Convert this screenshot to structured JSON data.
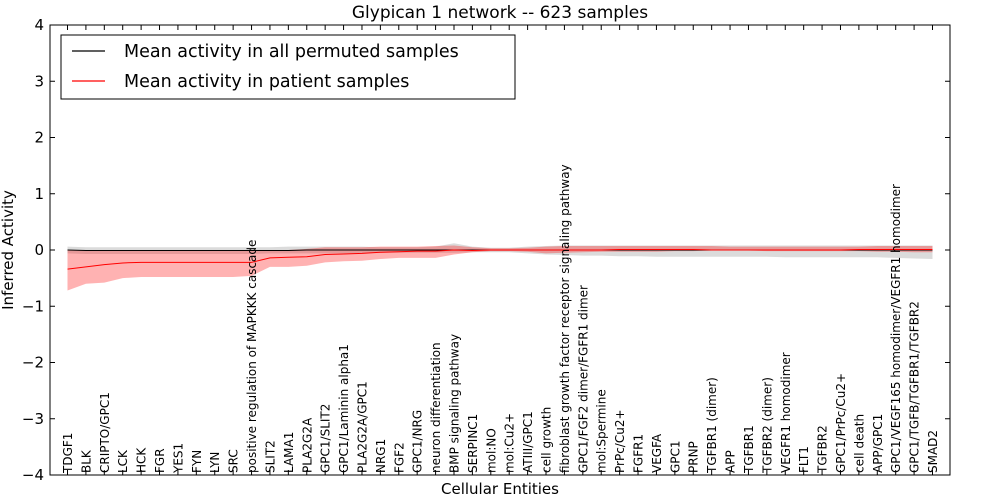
{
  "chart_data": {
    "type": "line",
    "title": "Glypican 1 network -- 623 samples",
    "xlabel": "Cellular Entities",
    "ylabel": "Inferred Activity",
    "ylim": [
      -4,
      4
    ],
    "yticks": [
      -4,
      -3,
      -2,
      -1,
      0,
      1,
      2,
      3,
      4
    ],
    "ytick_labels": [
      "−4",
      "−3",
      "−2",
      "−1",
      "0",
      "1",
      "2",
      "3",
      "4"
    ],
    "grid": false,
    "legend_position": "top-left",
    "categories": [
      "TDGF1",
      "BLK",
      "CRIPTO/GPC1",
      "LCK",
      "HCK",
      "FGR",
      "YES1",
      "FYN",
      "LYN",
      "SRC",
      "positive regulation of MAPKKK cascade",
      "SLIT2",
      "LAMA1",
      "PLA2G2A",
      "GPC1/SLIT2",
      "GPC1/Laminin alpha1",
      "PLA2G2A/GPC1",
      "NRG1",
      "FGF2",
      "GPC1/NRG",
      "neuron differentiation",
      "BMP signaling pathway",
      "SERPINC1",
      "mol:NO",
      "mol:Cu2+",
      "ATIII/GPC1",
      "cell growth",
      "fibroblast growth factor receptor signaling pathway",
      "GPC1/FGF2 dimer/FGFR1 dimer",
      "mol:Spermine",
      "PrPc/Cu2+",
      "FGFR1",
      "VEGFA",
      "GPC1",
      "PRNP",
      "TGFBR1 (dimer)",
      "APP",
      "TGFBR1",
      "TGFBR2 (dimer)",
      "VEGFR1 homodimer",
      "FLT1",
      "TGFBR2",
      "GPC1/PrPc/Cu2+",
      "cell death",
      "APP/GPC1",
      "GPC1/VEGF165 homodimer/VEGFR1 homodimer",
      "GPC1/TGFB/TGFBR1/TGFBR2",
      "SMAD2"
    ],
    "series": [
      {
        "name": "Mean activity in all permuted samples",
        "color": "#000000",
        "band_color": "#a0a0a0",
        "values": [
          0.0,
          -0.01,
          -0.01,
          -0.01,
          -0.01,
          -0.01,
          -0.01,
          -0.01,
          -0.01,
          -0.01,
          -0.01,
          -0.01,
          -0.01,
          0.0,
          0.0,
          0.0,
          0.0,
          0.0,
          0.0,
          0.0,
          0.0,
          0.0,
          0.0,
          0.0,
          0.0,
          0.0,
          0.0,
          0.0,
          0.0,
          0.0,
          0.0,
          0.0,
          0.0,
          0.0,
          0.0,
          0.0,
          0.0,
          0.0,
          0.0,
          0.0,
          0.0,
          0.0,
          0.0,
          0.0,
          0.0,
          0.0,
          0.0,
          0.0
        ],
        "lower": [
          -0.06,
          -0.07,
          -0.07,
          -0.07,
          -0.07,
          -0.07,
          -0.07,
          -0.07,
          -0.07,
          -0.07,
          -0.07,
          -0.06,
          -0.06,
          -0.06,
          -0.06,
          -0.06,
          -0.06,
          -0.05,
          -0.05,
          -0.05,
          -0.05,
          -0.05,
          -0.04,
          -0.04,
          -0.04,
          -0.06,
          -0.08,
          -0.09,
          -0.1,
          -0.1,
          -0.11,
          -0.11,
          -0.12,
          -0.12,
          -0.12,
          -0.12,
          -0.12,
          -0.12,
          -0.12,
          -0.13,
          -0.13,
          -0.13,
          -0.13,
          -0.13,
          -0.13,
          -0.14,
          -0.15,
          -0.16
        ],
        "upper": [
          0.06,
          0.05,
          0.05,
          0.05,
          0.05,
          0.05,
          0.05,
          0.05,
          0.05,
          0.05,
          0.05,
          0.05,
          0.06,
          0.06,
          0.06,
          0.06,
          0.06,
          0.05,
          0.05,
          0.05,
          0.06,
          0.12,
          0.06,
          0.04,
          0.04,
          0.06,
          0.07,
          0.08,
          0.08,
          0.08,
          0.08,
          0.08,
          0.08,
          0.08,
          0.08,
          0.08,
          0.08,
          0.08,
          0.08,
          0.08,
          0.08,
          0.08,
          0.08,
          0.08,
          0.08,
          0.08,
          0.08,
          0.08
        ]
      },
      {
        "name": "Mean activity in patient samples",
        "color": "#ff0000",
        "band_color": "#ff0000",
        "values": [
          -0.34,
          -0.3,
          -0.26,
          -0.23,
          -0.22,
          -0.22,
          -0.22,
          -0.22,
          -0.22,
          -0.22,
          -0.22,
          -0.14,
          -0.13,
          -0.12,
          -0.08,
          -0.07,
          -0.06,
          -0.04,
          -0.03,
          -0.02,
          -0.02,
          0.0,
          -0.01,
          0.0,
          0.0,
          0.0,
          0.0,
          0.0,
          0.0,
          0.0,
          0.01,
          0.01,
          0.01,
          0.01,
          0.01,
          0.0,
          0.0,
          0.0,
          0.0,
          0.0,
          0.0,
          0.0,
          0.0,
          0.01,
          0.01,
          0.01,
          0.01,
          0.01
        ],
        "lower": [
          -0.72,
          -0.6,
          -0.58,
          -0.5,
          -0.48,
          -0.48,
          -0.48,
          -0.48,
          -0.48,
          -0.48,
          -0.46,
          -0.3,
          -0.3,
          -0.28,
          -0.22,
          -0.2,
          -0.19,
          -0.16,
          -0.14,
          -0.14,
          -0.14,
          -0.08,
          -0.04,
          -0.02,
          -0.02,
          -0.03,
          -0.06,
          -0.05,
          -0.04,
          -0.03,
          -0.03,
          -0.03,
          -0.03,
          -0.02,
          -0.02,
          -0.01,
          -0.01,
          -0.01,
          -0.02,
          -0.02,
          -0.02,
          -0.02,
          -0.02,
          -0.02,
          -0.03,
          -0.03,
          -0.04,
          -0.04
        ],
        "upper": [
          0.0,
          0.0,
          0.0,
          0.0,
          0.0,
          0.0,
          0.0,
          0.0,
          0.0,
          0.0,
          0.0,
          0.0,
          0.0,
          0.02,
          0.05,
          0.05,
          0.05,
          0.06,
          0.06,
          0.06,
          0.07,
          0.08,
          0.05,
          0.03,
          0.03,
          0.04,
          0.06,
          0.07,
          0.07,
          0.07,
          0.07,
          0.07,
          0.07,
          0.07,
          0.07,
          0.07,
          0.06,
          0.06,
          0.06,
          0.06,
          0.06,
          0.06,
          0.06,
          0.06,
          0.07,
          0.07,
          0.07,
          0.07
        ]
      }
    ]
  }
}
